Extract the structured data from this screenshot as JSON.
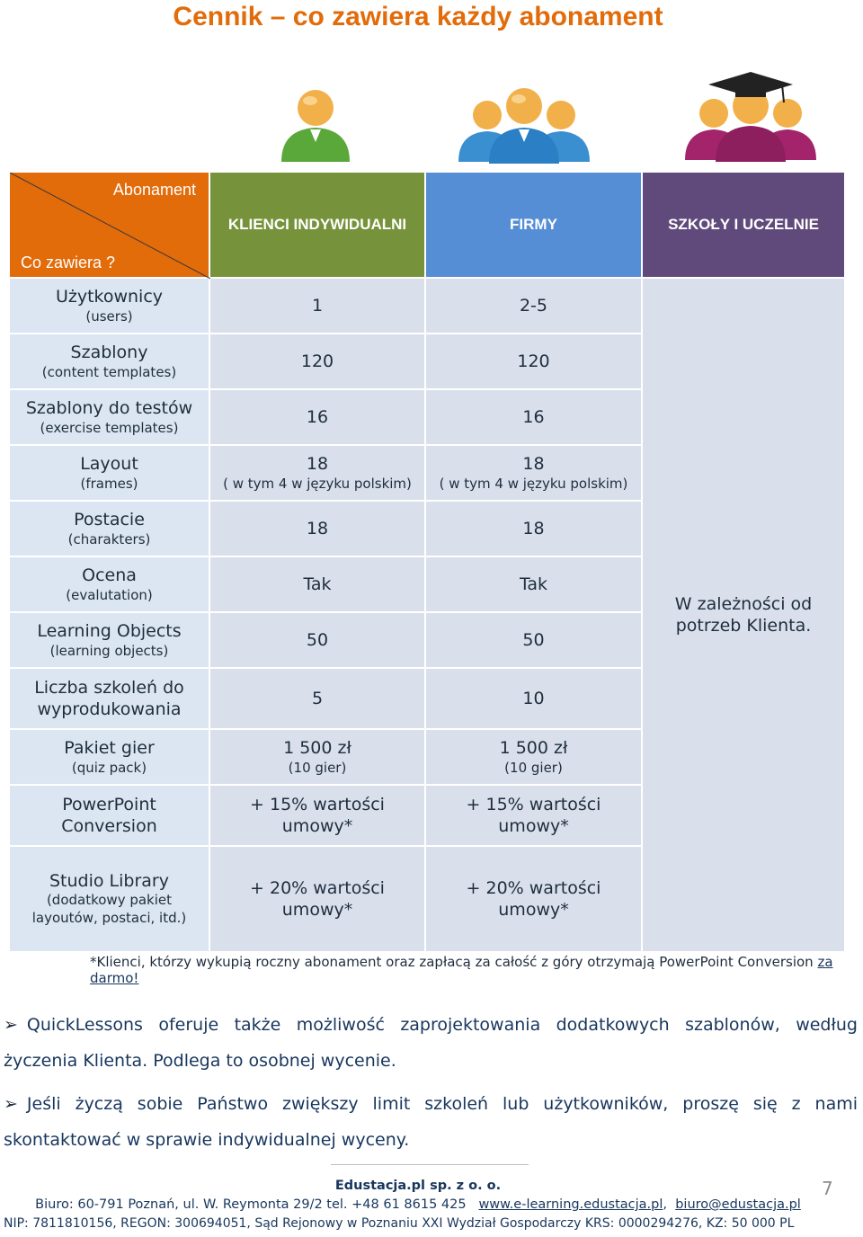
{
  "title": "Cennik – co zawiera każdy abonament",
  "colors": {
    "accent": "#e26b0a",
    "individual": "#76933c",
    "firms": "#558ed5",
    "schools": "#604a7b",
    "cell": "#d9e0ec"
  },
  "header": {
    "corner_top": "Abonament",
    "corner_bottom": "Co zawiera ?",
    "col_individual": "KLIENCI INDYWIDUALNI",
    "col_firms": "FIRMY",
    "col_schools": "SZKOŁY I UCZELNIE"
  },
  "rows": [
    {
      "label": "Użytkownicy",
      "sub": "(users)",
      "ind": "1",
      "firm": "2-5"
    },
    {
      "label": "Szablony",
      "sub": "(content templates)",
      "ind": "120",
      "firm": "120"
    },
    {
      "label": "Szablony do testów",
      "sub": "(exercise templates)",
      "ind": "16",
      "firm": "16"
    },
    {
      "label": "Layout",
      "sub": "(frames)",
      "ind": "18",
      "ind_sub": "( w tym 4 w języku polskim)",
      "firm": "18",
      "firm_sub": "( w tym 4 w języku polskim)"
    },
    {
      "label": "Postacie",
      "sub": "(charakters)",
      "ind": "18",
      "firm": "18"
    },
    {
      "label": "Ocena",
      "sub": "(evalutation)",
      "ind": "Tak",
      "firm": "Tak"
    },
    {
      "label": "Learning Objects",
      "sub": "(learning objects)",
      "ind": "50",
      "firm": "50"
    },
    {
      "label": "Liczba szkoleń do wyprodukowania",
      "ind": "5",
      "firm": "10"
    },
    {
      "label": "Pakiet gier",
      "sub": "(quiz pack)",
      "ind": "1 500 zł",
      "ind_sub": "(10 gier)",
      "firm": "1 500 zł",
      "firm_sub": "(10 gier)"
    },
    {
      "label": "PowerPoint Conversion",
      "ind": "+ 15% wartości umowy*",
      "firm": "+ 15% wartości umowy*"
    },
    {
      "label": "Studio Library",
      "sub": "(dodatkowy pakiet layoutów, postaci, itd.)",
      "ind": "+ 20% wartości umowy*",
      "firm": "+ 20% wartości umowy*"
    }
  ],
  "schools_note": "W zależności od potrzeb Klienta.",
  "footnote": {
    "text": "*Klienci, którzy wykupią roczny abonament oraz zapłacą za całość z góry otrzymają PowerPoint  Conversion",
    "link": "za darmo!"
  },
  "bullets": [
    "QuickLessons oferuje także możliwość zaprojektowania dodatkowych szablonów, według życzenia Klienta. Podlega to osobnej wycenie.",
    "Jeśli życzą sobie Państwo zwiększy limit szkoleń lub użytkowników, proszę się z nami skontaktować w sprawie indywidualnej wyceny."
  ],
  "footer": {
    "company": "Edustacja.pl sp. z o. o.",
    "address": "Biuro: 60-791 Poznań, ul. W. Reymonta 29/2  tel. +48 61 8615 425",
    "website": "www.e-learning.edustacja.pl",
    "email": "biuro@edustacja.pl",
    "registry": "NIP: 7811810156,  REGON: 300694051,  Sąd Rejonowy w Poznaniu XXI Wydział Gospodarczy  KRS: 0000294276,  KZ: 50 000 PL"
  },
  "page_number": "7"
}
